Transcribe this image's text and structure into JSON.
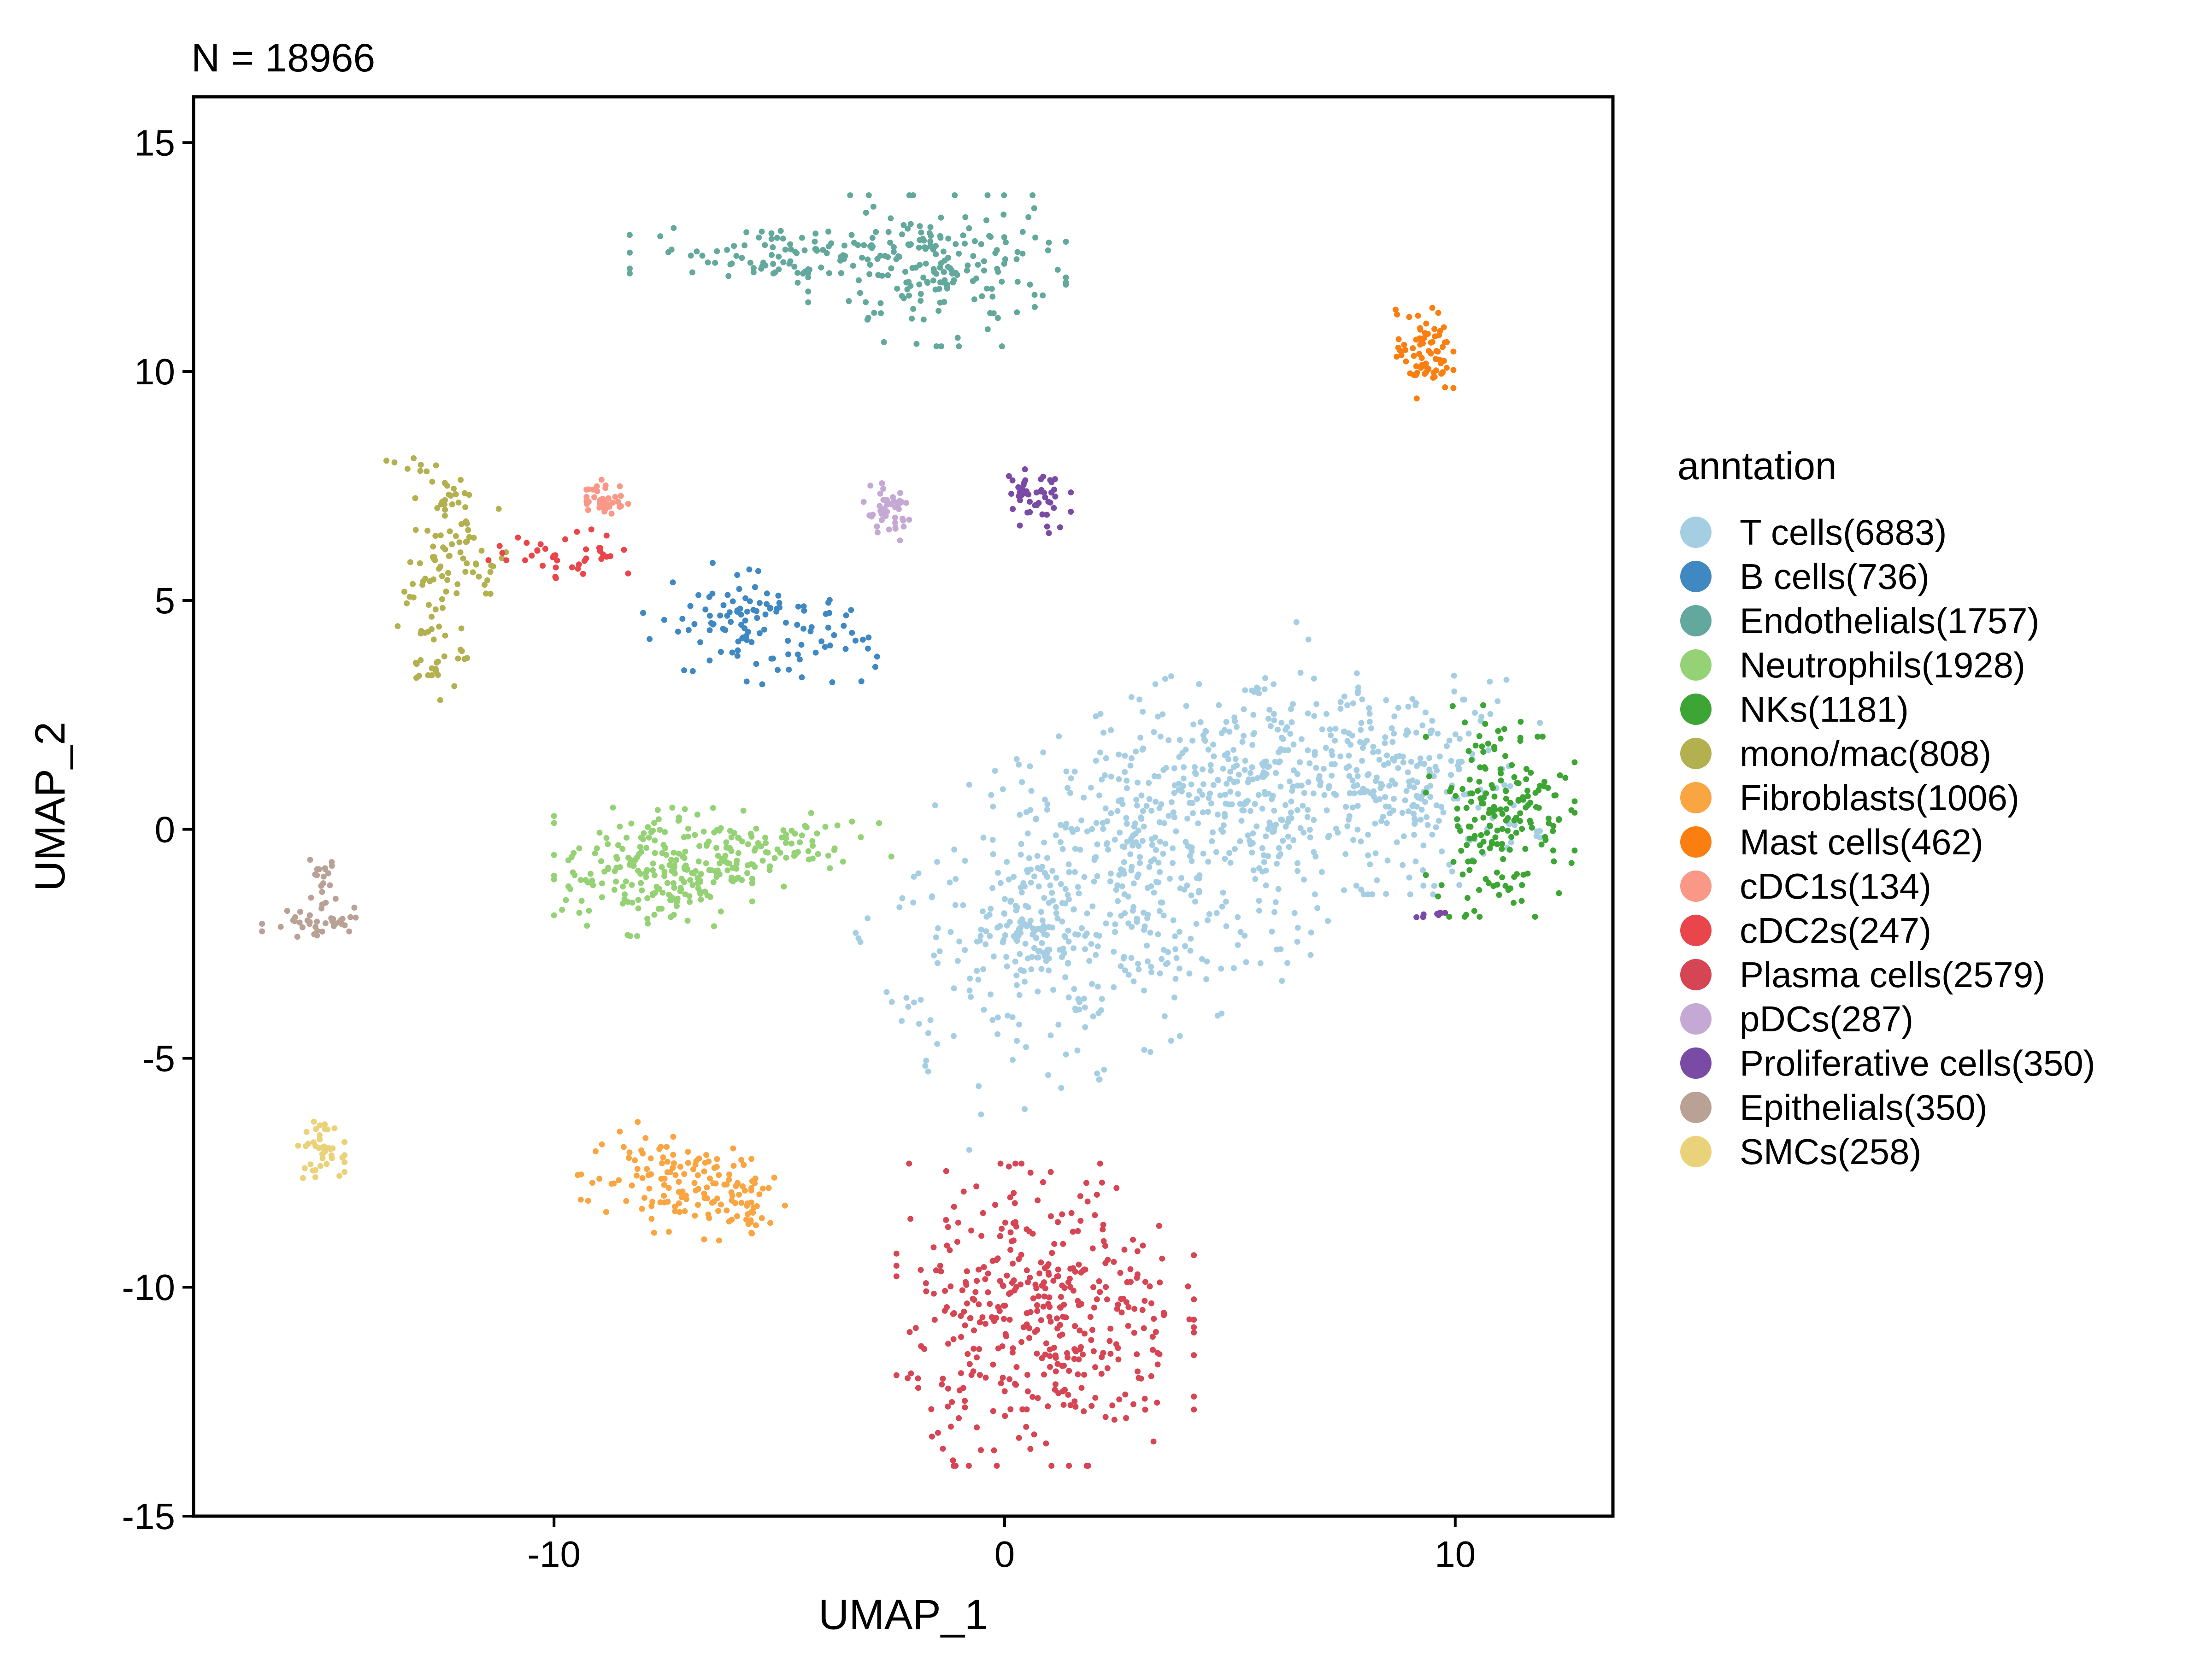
{
  "chart_data": {
    "type": "scatter",
    "title": "N = 18966",
    "xlabel": "UMAP_1",
    "ylabel": "UMAP_2",
    "xlim": [
      -18,
      13.5
    ],
    "ylim": [
      -15,
      16
    ],
    "x_ticks": [
      -10,
      0,
      10
    ],
    "x_tick_labels": [
      "-10",
      "0",
      "10"
    ],
    "y_ticks": [
      -15,
      -10,
      -5,
      0,
      5,
      10,
      15
    ],
    "y_tick_labels": [
      "-15",
      "-10",
      "-5",
      "0",
      "5",
      "10",
      "15"
    ],
    "grid": false,
    "legend": {
      "title": "anntation",
      "position": "right"
    },
    "series": [
      {
        "name": "T cells(6883)",
        "count": 6883,
        "color": "#a6cee3",
        "clusters": [
          {
            "cx": 3.0,
            "cy": -1.0,
            "sx": 2.8,
            "sy": 1.6,
            "angle": 28,
            "weight": 0.55
          },
          {
            "cx": 0.5,
            "cy": -2.3,
            "sx": 0.9,
            "sy": 0.6,
            "angle": 0,
            "weight": 0.08
          },
          {
            "cx": 5.0,
            "cy": 1.3,
            "sx": 1.2,
            "sy": 0.8,
            "angle": 0,
            "weight": 0.12
          },
          {
            "cx": 8.8,
            "cy": 1.0,
            "sx": 1.4,
            "sy": 1.1,
            "angle": 0,
            "weight": 0.25
          }
        ]
      },
      {
        "name": "B cells(736)",
        "count": 736,
        "color": "#3f88c2",
        "clusters": [
          {
            "cx": -5.4,
            "cy": 4.4,
            "sx": 1.2,
            "sy": 0.55,
            "angle": -10,
            "weight": 1
          }
        ]
      },
      {
        "name": "Endothelials(1757)",
        "count": 1757,
        "color": "#63a89c",
        "clusters": [
          {
            "cx": -1.5,
            "cy": 12.2,
            "sx": 1.3,
            "sy": 0.75,
            "angle": 0,
            "weight": 0.65
          },
          {
            "cx": -4.8,
            "cy": 12.6,
            "sx": 1.6,
            "sy": 0.3,
            "angle": 0,
            "weight": 0.35
          }
        ]
      },
      {
        "name": "Neutrophils(1928)",
        "count": 1928,
        "color": "#95d175",
        "clusters": [
          {
            "cx": -7.8,
            "cy": -0.9,
            "sx": 1.0,
            "sy": 0.65,
            "angle": 0,
            "weight": 0.65
          },
          {
            "cx": -5.5,
            "cy": -0.5,
            "sx": 1.3,
            "sy": 0.4,
            "angle": 15,
            "weight": 0.35
          }
        ]
      },
      {
        "name": "NKs(1181)",
        "count": 1181,
        "color": "#3ca533",
        "clusters": [
          {
            "cx": 11.0,
            "cy": 0.4,
            "sx": 0.75,
            "sy": 1.05,
            "angle": 0,
            "weight": 1
          }
        ]
      },
      {
        "name": "mono/mac(808)",
        "count": 808,
        "color": "#b3b050",
        "clusters": [
          {
            "cx": -12.1,
            "cy": 5.9,
            "sx": 0.55,
            "sy": 0.5,
            "angle": 0,
            "weight": 0.4
          },
          {
            "cx": -12.7,
            "cy": 4.2,
            "sx": 0.35,
            "sy": 0.75,
            "angle": 0,
            "weight": 0.35
          },
          {
            "cx": -12.6,
            "cy": 7.3,
            "sx": 0.3,
            "sy": 0.55,
            "angle": 30,
            "weight": 0.25
          }
        ]
      },
      {
        "name": "Fibroblasts(1006)",
        "count": 1006,
        "color": "#f9a541",
        "clusters": [
          {
            "cx": -7.6,
            "cy": -7.6,
            "sx": 0.9,
            "sy": 0.55,
            "angle": 0,
            "weight": 0.6
          },
          {
            "cx": -6.1,
            "cy": -8.1,
            "sx": 0.7,
            "sy": 0.4,
            "angle": 0,
            "weight": 0.4
          }
        ]
      },
      {
        "name": "Mast cells(462)",
        "count": 462,
        "color": "#fb7f10",
        "clusters": [
          {
            "cx": 9.3,
            "cy": 10.4,
            "sx": 0.3,
            "sy": 0.45,
            "angle": 0,
            "weight": 1
          }
        ]
      },
      {
        "name": "cDC1s(134)",
        "count": 134,
        "color": "#f99887",
        "clusters": [
          {
            "cx": -8.9,
            "cy": 7.2,
            "sx": 0.25,
            "sy": 0.2,
            "angle": 0,
            "weight": 1
          }
        ]
      },
      {
        "name": "cDC2s(247)",
        "count": 247,
        "color": "#e9454a",
        "clusters": [
          {
            "cx": -9.7,
            "cy": 6.0,
            "sx": 0.8,
            "sy": 0.25,
            "angle": 0,
            "weight": 1
          }
        ]
      },
      {
        "name": "Plasma cells(2579)",
        "count": 2579,
        "color": "#d64553",
        "clusters": [
          {
            "cx": 0.9,
            "cy": -10.6,
            "sx": 1.5,
            "sy": 1.5,
            "angle": 0,
            "weight": 1
          }
        ]
      },
      {
        "name": "pDCs(287)",
        "count": 287,
        "color": "#c5a9d5",
        "clusters": [
          {
            "cx": -2.6,
            "cy": 6.9,
            "sx": 0.3,
            "sy": 0.3,
            "angle": 0,
            "weight": 1
          }
        ]
      },
      {
        "name": "Proliferative cells(350)",
        "count": 350,
        "color": "#7a4ba4",
        "clusters": [
          {
            "cx": 0.7,
            "cy": 7.2,
            "sx": 0.35,
            "sy": 0.4,
            "angle": 0,
            "weight": 0.85
          },
          {
            "cx": 9.5,
            "cy": -1.8,
            "sx": 0.25,
            "sy": 0.08,
            "angle": 0,
            "weight": 0.15
          }
        ]
      },
      {
        "name": "Epithelials(350)",
        "count": 350,
        "color": "#b9a195",
        "clusters": [
          {
            "cx": -15.2,
            "cy": -1.2,
            "sx": 0.2,
            "sy": 0.25,
            "angle": 0,
            "weight": 0.35
          },
          {
            "cx": -15.6,
            "cy": -2.0,
            "sx": 0.4,
            "sy": 0.2,
            "angle": 0,
            "weight": 0.35
          },
          {
            "cx": -14.8,
            "cy": -1.9,
            "sx": 0.35,
            "sy": 0.15,
            "angle": 0,
            "weight": 0.3
          }
        ]
      },
      {
        "name": "SMCs(258)",
        "count": 258,
        "color": "#ead27a",
        "clusters": [
          {
            "cx": -15.2,
            "cy": -7.0,
            "sx": 0.25,
            "sy": 0.28,
            "angle": 0,
            "weight": 1
          }
        ]
      }
    ]
  }
}
